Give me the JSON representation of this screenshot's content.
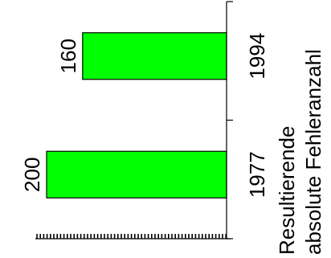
{
  "chart_data": {
    "type": "bar",
    "orientation": "horizontal-rotated",
    "categories": [
      "1977",
      "1994"
    ],
    "values": [
      200,
      160
    ],
    "data_labels": [
      "200",
      "160"
    ],
    "xlabel_lines": [
      "Resultierende",
      "absolute Fehleranzahl"
    ],
    "title": "",
    "ylabel": "",
    "xlim": [
      0,
      200
    ],
    "bar_color": "#00ff00",
    "bar_outline": "#000000",
    "grid": false,
    "legend": "none"
  }
}
